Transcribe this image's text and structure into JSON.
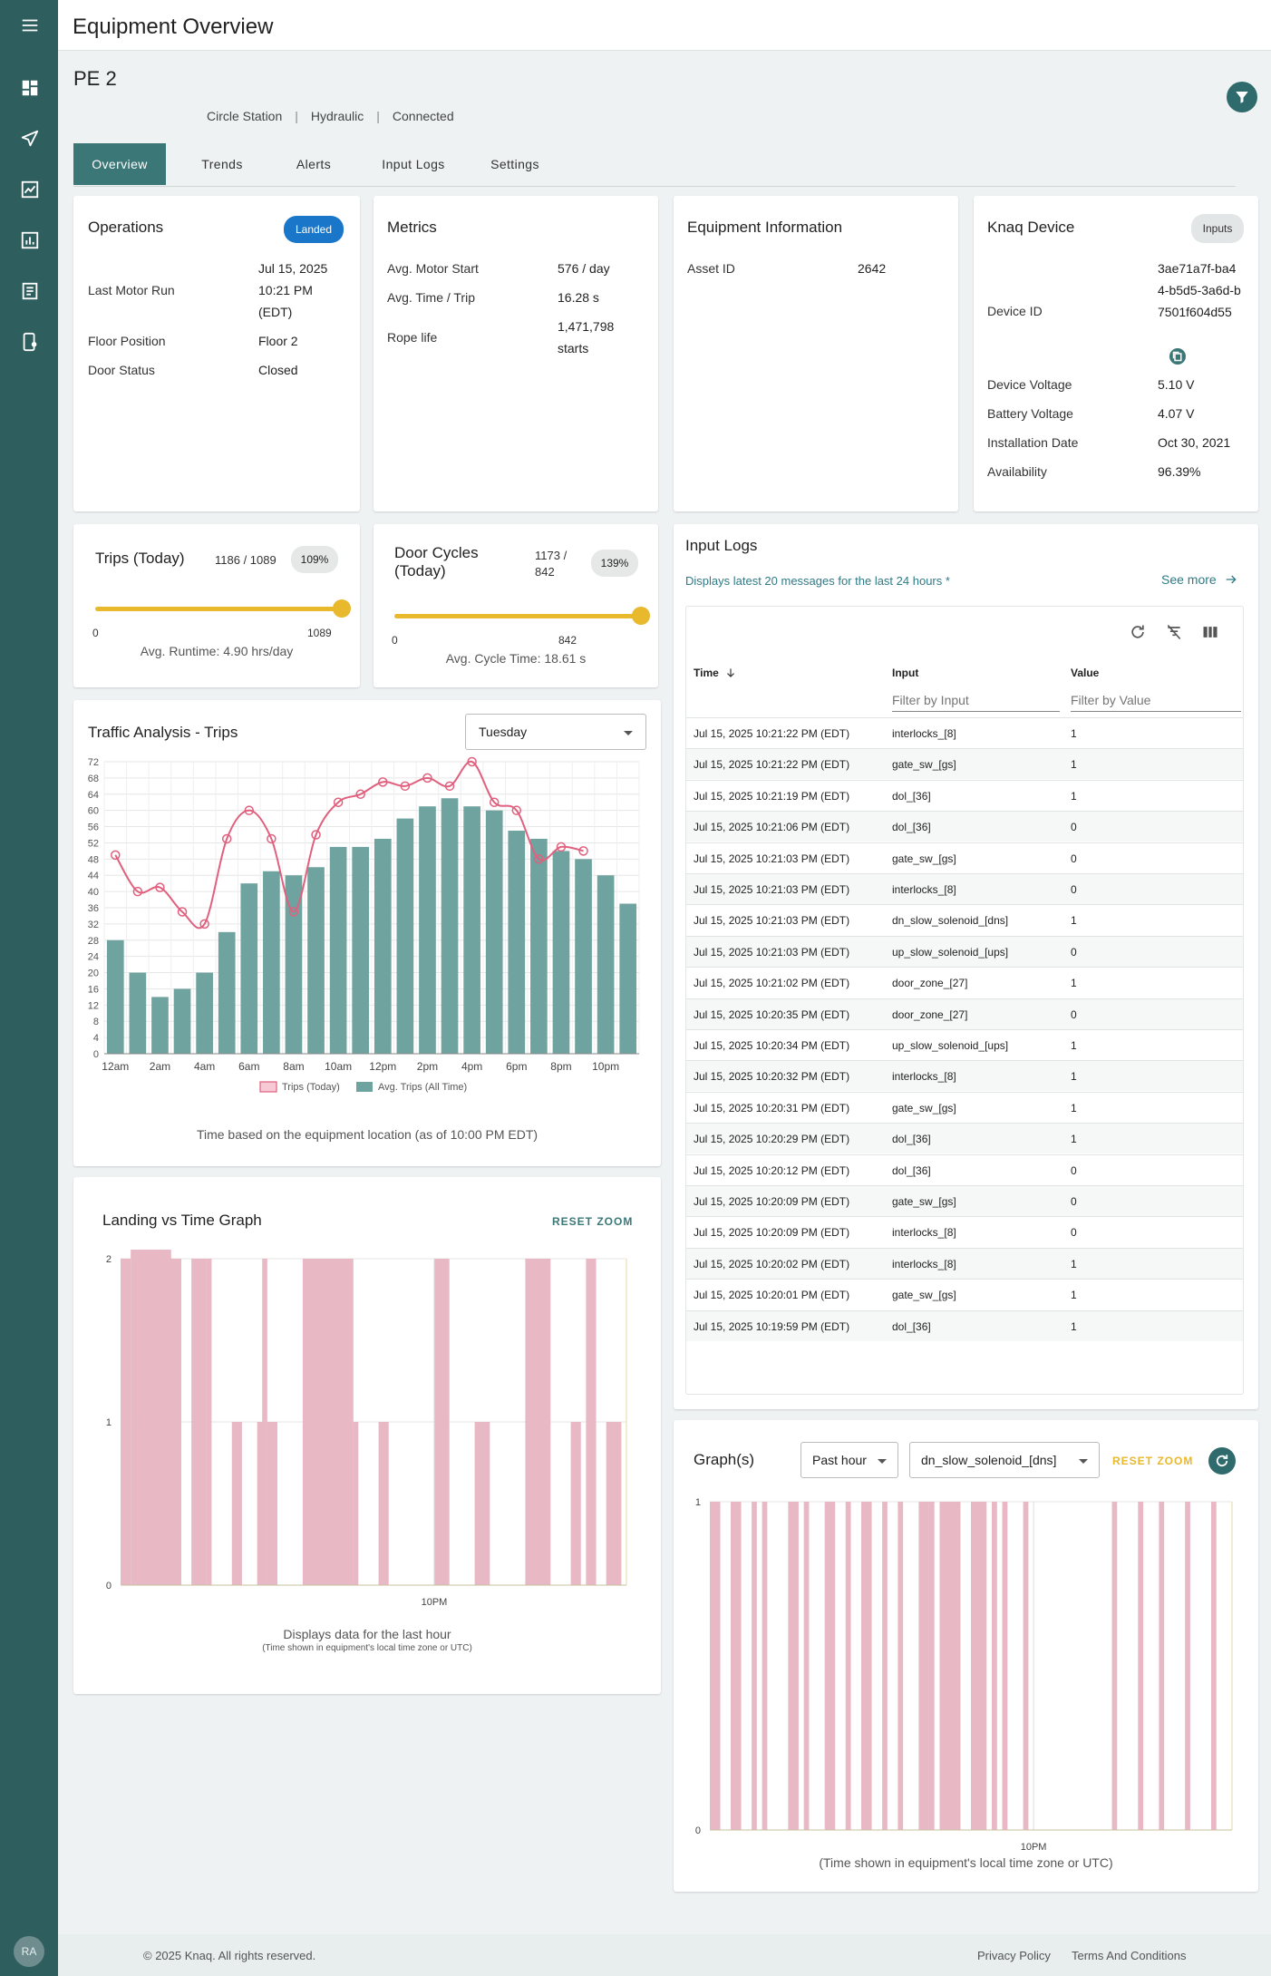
{
  "header": {
    "title": "Equipment Overview"
  },
  "equipment": {
    "name": "PE 2",
    "station": "Circle Station",
    "type": "Hydraulic",
    "status": "Connected"
  },
  "tabs": [
    "Overview",
    "Trends",
    "Alerts",
    "Input Logs",
    "Settings"
  ],
  "operations": {
    "title": "Operations",
    "badge": "Landed",
    "last_motor_run_label": "Last Motor Run",
    "last_motor_run_value": "Jul 15, 2025 10:21 PM (EDT)",
    "floor_position_label": "Floor Position",
    "floor_position_value": "Floor 2",
    "door_status_label": "Door Status",
    "door_status_value": "Closed"
  },
  "metrics": {
    "title": "Metrics",
    "motor_start_label": "Avg. Motor Start",
    "motor_start_value": "576 / day",
    "time_trip_label": "Avg. Time / Trip",
    "time_trip_value": "16.28 s",
    "rope_life_label": "Rope life",
    "rope_life_value": "1,471,798 starts"
  },
  "equipment_info": {
    "title": "Equipment Information",
    "asset_id_label": "Asset ID",
    "asset_id_value": "2642"
  },
  "knaq_device": {
    "title": "Knaq Device",
    "inputs_button": "Inputs",
    "device_id_label": "Device ID",
    "device_id_value": "3ae71a7f-ba44-b5d5-3a6d-b7501f604d55",
    "voltage_label": "Device Voltage",
    "voltage_value": "5.10 V",
    "battery_label": "Battery Voltage",
    "battery_value": "4.07 V",
    "install_label": "Installation Date",
    "install_value": "Oct 30, 2021",
    "availability_label": "Availability",
    "availability_value": "96.39%"
  },
  "trips_today": {
    "title": "Trips (Today)",
    "ratio": "1186 / 1089",
    "percent": "109%",
    "min": "0",
    "max": "1089",
    "level": 1.0,
    "note": "Avg. Runtime: 4.90 hrs/day"
  },
  "door_cycles": {
    "title": "Door Cycles (Today)",
    "ratio": "1173 / 842",
    "percent": "139%",
    "min": "0",
    "max": "842",
    "level": 1.0,
    "note": "Avg. Cycle Time: 18.61 s"
  },
  "traffic": {
    "title": "Traffic Analysis - Trips",
    "day": "Tuesday",
    "note": "Time based on the equipment location (as of 10:00 PM EDT)"
  },
  "chart_data": [
    {
      "type": "bar+line",
      "title": "Traffic Analysis - Trips",
      "x": [
        "12am",
        "1am",
        "2am",
        "3am",
        "4am",
        "5am",
        "6am",
        "7am",
        "8am",
        "9am",
        "10am",
        "11am",
        "12pm",
        "1pm",
        "2pm",
        "3pm",
        "4pm",
        "5pm",
        "6pm",
        "7pm",
        "8pm",
        "9pm",
        "10pm",
        "11pm"
      ],
      "x_tick_labels": [
        "12am",
        "2am",
        "4am",
        "6am",
        "8am",
        "10am",
        "12pm",
        "2pm",
        "4pm",
        "6pm",
        "8pm",
        "10pm"
      ],
      "ylim": [
        0,
        72
      ],
      "y_ticks": [
        0,
        4,
        8,
        12,
        16,
        20,
        24,
        28,
        32,
        36,
        40,
        44,
        48,
        52,
        56,
        60,
        64,
        68,
        72
      ],
      "series": [
        {
          "name": "Avg. Trips (All Time)",
          "type": "bar",
          "color": "#6fa39f",
          "values": [
            28,
            20,
            14,
            16,
            20,
            30,
            42,
            45,
            44,
            46,
            51,
            51,
            53,
            58,
            61,
            63,
            61,
            60,
            55,
            53,
            50,
            48,
            44,
            37
          ]
        },
        {
          "name": "Trips (Today)",
          "type": "line",
          "color": "#e0607e",
          "values": [
            49,
            40,
            41,
            35,
            32,
            53,
            60,
            53,
            35,
            54,
            62,
            64,
            67,
            66,
            68,
            66,
            72,
            62,
            60,
            48,
            51,
            50,
            null,
            null
          ]
        }
      ],
      "legend_position": "bottom",
      "grid": true
    },
    {
      "type": "bar",
      "title": "Landing vs Time Graph",
      "x_tick_labels": [
        "10PM"
      ],
      "y_ticks": [
        "0",
        "1",
        "2"
      ],
      "ylim": [
        0,
        2
      ],
      "color": "#e8b8c5",
      "pulses": [
        [
          0,
          2,
          2
        ],
        [
          2,
          8,
          4
        ],
        [
          4,
          3,
          1
        ],
        [
          6,
          1,
          2
        ],
        [
          7,
          4,
          2
        ],
        [
          10,
          2,
          2
        ],
        [
          11,
          1,
          2
        ],
        [
          14,
          3,
          2
        ],
        [
          17,
          1,
          2
        ],
        [
          22,
          2,
          1
        ],
        [
          27,
          2,
          1
        ],
        [
          28,
          1,
          2
        ],
        [
          29,
          2,
          1
        ],
        [
          36,
          6,
          2
        ],
        [
          39,
          7,
          2
        ],
        [
          42,
          4,
          2
        ],
        [
          43,
          1,
          2
        ],
        [
          46,
          1,
          1
        ],
        [
          51,
          2,
          1
        ],
        [
          62,
          3,
          2
        ],
        [
          70,
          3,
          1
        ],
        [
          80,
          5,
          2
        ],
        [
          89,
          2,
          1
        ],
        [
          92,
          2,
          2
        ],
        [
          96,
          3,
          1
        ]
      ]
    },
    {
      "type": "bar",
      "title": "Graph(s)",
      "series_name": "dn_slow_solenoid_[dns]",
      "x_tick_labels": [
        "10PM"
      ],
      "y_ticks": [
        "0",
        "1"
      ],
      "ylim": [
        0,
        1
      ],
      "color": "#e8b8c5",
      "pulses": [
        [
          0,
          2,
          1
        ],
        [
          4,
          2,
          1
        ],
        [
          8,
          1,
          1
        ],
        [
          10,
          1,
          1
        ],
        [
          15,
          2,
          1
        ],
        [
          18,
          1,
          1
        ],
        [
          22,
          2,
          1
        ],
        [
          26,
          1,
          1
        ],
        [
          29,
          2,
          1
        ],
        [
          33,
          1,
          1
        ],
        [
          36,
          1,
          1
        ],
        [
          40,
          2,
          1
        ],
        [
          42,
          1,
          1
        ],
        [
          44,
          4,
          1
        ],
        [
          50,
          3,
          1
        ],
        [
          54,
          1,
          1
        ],
        [
          56,
          1,
          1
        ],
        [
          60,
          1,
          1
        ],
        [
          77,
          1,
          1
        ],
        [
          82,
          1,
          1
        ],
        [
          86,
          1,
          1
        ],
        [
          91,
          1,
          1
        ],
        [
          96,
          1,
          1
        ]
      ]
    }
  ],
  "input_logs": {
    "title": "Input Logs",
    "subtitle": "Displays latest 20 messages for the last 24 hours *",
    "see_more": "See more",
    "col_time": "Time",
    "col_input": "Input",
    "col_value": "Value",
    "filter_input": "Filter by Input",
    "filter_value": "Filter by Value",
    "rows": [
      [
        "Jul 15, 2025 10:21:22 PM (EDT)",
        "interlocks_[8]",
        "1"
      ],
      [
        "Jul 15, 2025 10:21:22 PM (EDT)",
        "gate_sw_[gs]",
        "1"
      ],
      [
        "Jul 15, 2025 10:21:19 PM (EDT)",
        "dol_[36]",
        "1"
      ],
      [
        "Jul 15, 2025 10:21:06 PM (EDT)",
        "dol_[36]",
        "0"
      ],
      [
        "Jul 15, 2025 10:21:03 PM (EDT)",
        "gate_sw_[gs]",
        "0"
      ],
      [
        "Jul 15, 2025 10:21:03 PM (EDT)",
        "interlocks_[8]",
        "0"
      ],
      [
        "Jul 15, 2025 10:21:03 PM (EDT)",
        "dn_slow_solenoid_[dns]",
        "1"
      ],
      [
        "Jul 15, 2025 10:21:03 PM (EDT)",
        "up_slow_solenoid_[ups]",
        "0"
      ],
      [
        "Jul 15, 2025 10:21:02 PM (EDT)",
        "door_zone_[27]",
        "1"
      ],
      [
        "Jul 15, 2025 10:20:35 PM (EDT)",
        "door_zone_[27]",
        "0"
      ],
      [
        "Jul 15, 2025 10:20:34 PM (EDT)",
        "up_slow_solenoid_[ups]",
        "1"
      ],
      [
        "Jul 15, 2025 10:20:32 PM (EDT)",
        "interlocks_[8]",
        "1"
      ],
      [
        "Jul 15, 2025 10:20:31 PM (EDT)",
        "gate_sw_[gs]",
        "1"
      ],
      [
        "Jul 15, 2025 10:20:29 PM (EDT)",
        "dol_[36]",
        "1"
      ],
      [
        "Jul 15, 2025 10:20:12 PM (EDT)",
        "dol_[36]",
        "0"
      ],
      [
        "Jul 15, 2025 10:20:09 PM (EDT)",
        "gate_sw_[gs]",
        "0"
      ],
      [
        "Jul 15, 2025 10:20:09 PM (EDT)",
        "interlocks_[8]",
        "0"
      ],
      [
        "Jul 15, 2025 10:20:02 PM (EDT)",
        "interlocks_[8]",
        "1"
      ],
      [
        "Jul 15, 2025 10:20:01 PM (EDT)",
        "gate_sw_[gs]",
        "1"
      ],
      [
        "Jul 15, 2025 10:19:59 PM (EDT)",
        "dol_[36]",
        "1"
      ]
    ]
  },
  "landing": {
    "title": "Landing vs Time Graph",
    "reset_zoom": "RESET ZOOM",
    "note": "Displays data for the last hour",
    "subnote": "(Time shown in equipment's local time zone or UTC)"
  },
  "graphs": {
    "title": "Graph(s)",
    "range": "Past hour",
    "signal": "dn_slow_solenoid_[dns]",
    "reset_zoom": "RESET ZOOM",
    "note": "(Time shown in equipment's local time zone or UTC)"
  },
  "footer": {
    "copyright": "© 2025 Knaq. All rights reserved.",
    "privacy": "Privacy Policy",
    "terms": "Terms And Conditions"
  },
  "user": {
    "initials": "RA"
  }
}
